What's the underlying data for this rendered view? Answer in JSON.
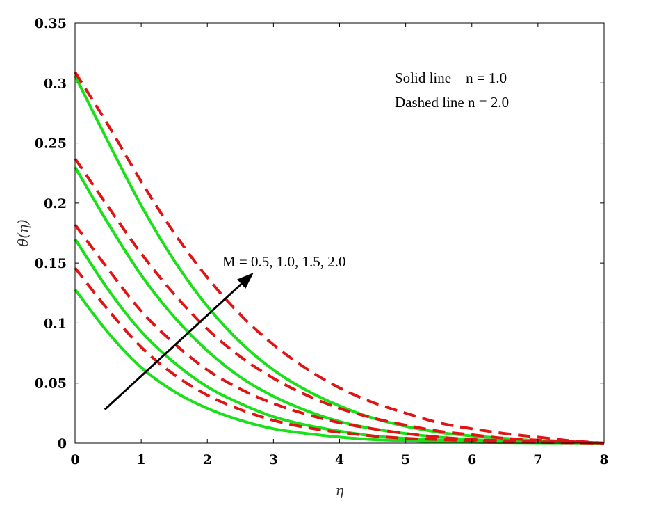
{
  "chart_data": {
    "type": "line",
    "xlabel": "η",
    "ylabel": "θ(η)",
    "xlim": [
      0,
      8
    ],
    "ylim": [
      0,
      0.35
    ],
    "x_ticks": [
      "0",
      "1",
      "2",
      "3",
      "4",
      "5",
      "6",
      "7",
      "8"
    ],
    "y_ticks": [
      "0",
      "0.05",
      "0.1",
      "0.15",
      "0.2",
      "0.25",
      "0.3",
      "0.35"
    ],
    "grid": false,
    "legend_text": [
      "Solid line    n = 1.0",
      "Dashed line n = 2.0"
    ],
    "arrow_label": "M = 0.5, 1.0, 1.5, 2.0",
    "colors": {
      "solid": "#19e019",
      "dashed": "#e01414",
      "arrow": "#000000"
    },
    "series": [
      {
        "style": "solid",
        "values": {
          "x": [
            0,
            0.5,
            1,
            1.5,
            2,
            2.5,
            3,
            3.5,
            4,
            4.5,
            5,
            5.5,
            6,
            6.5,
            7,
            7.5,
            8
          ],
          "y": [
            0.128,
            0.092,
            0.063,
            0.043,
            0.029,
            0.019,
            0.012,
            0.008,
            0.005,
            0.003,
            0.002,
            0.001,
            0.0008,
            0.0005,
            0.0003,
            0.0002,
            0.0
          ]
        }
      },
      {
        "style": "solid",
        "values": {
          "x": [
            0,
            0.5,
            1,
            1.5,
            2,
            2.5,
            3,
            3.5,
            4,
            4.5,
            5,
            5.5,
            6,
            6.5,
            7,
            7.5,
            8
          ],
          "y": [
            0.17,
            0.128,
            0.093,
            0.067,
            0.047,
            0.033,
            0.022,
            0.015,
            0.01,
            0.006,
            0.004,
            0.0025,
            0.0015,
            0.0009,
            0.0005,
            0.0003,
            0.0
          ]
        }
      },
      {
        "style": "solid",
        "values": {
          "x": [
            0,
            0.5,
            1,
            1.5,
            2,
            2.5,
            3,
            3.5,
            4,
            4.5,
            5,
            5.5,
            6,
            6.5,
            7,
            7.5,
            8
          ],
          "y": [
            0.23,
            0.183,
            0.14,
            0.105,
            0.077,
            0.055,
            0.039,
            0.027,
            0.018,
            0.012,
            0.008,
            0.005,
            0.003,
            0.002,
            0.001,
            0.0005,
            0.0
          ]
        }
      },
      {
        "style": "solid",
        "values": {
          "x": [
            0,
            0.5,
            1,
            1.5,
            2,
            2.5,
            3,
            3.5,
            4,
            4.5,
            5,
            5.5,
            6,
            6.5,
            7,
            7.5,
            8
          ],
          "y": [
            0.306,
            0.251,
            0.198,
            0.152,
            0.114,
            0.084,
            0.061,
            0.044,
            0.031,
            0.021,
            0.014,
            0.009,
            0.006,
            0.004,
            0.002,
            0.001,
            0.0
          ]
        }
      },
      {
        "style": "dashed",
        "values": {
          "x": [
            0,
            0.5,
            1,
            1.5,
            2,
            2.5,
            3,
            3.5,
            4,
            4.5,
            5,
            5.5,
            6,
            6.5,
            7,
            7.5,
            8
          ],
          "y": [
            0.146,
            0.111,
            0.08,
            0.057,
            0.04,
            0.028,
            0.019,
            0.013,
            0.009,
            0.006,
            0.004,
            0.003,
            0.002,
            0.001,
            0.0007,
            0.0003,
            0.0
          ]
        }
      },
      {
        "style": "dashed",
        "values": {
          "x": [
            0,
            0.5,
            1,
            1.5,
            2,
            2.5,
            3,
            3.5,
            4,
            4.5,
            5,
            5.5,
            6,
            6.5,
            7,
            7.5,
            8
          ],
          "y": [
            0.182,
            0.145,
            0.11,
            0.083,
            0.061,
            0.045,
            0.033,
            0.024,
            0.017,
            0.012,
            0.008,
            0.005,
            0.003,
            0.002,
            0.0012,
            0.0006,
            0.0
          ]
        }
      },
      {
        "style": "dashed",
        "values": {
          "x": [
            0,
            0.5,
            1,
            1.5,
            2,
            2.5,
            3,
            3.5,
            4,
            4.5,
            5,
            5.5,
            6,
            6.5,
            7,
            7.5,
            8
          ],
          "y": [
            0.237,
            0.197,
            0.158,
            0.124,
            0.095,
            0.072,
            0.054,
            0.04,
            0.029,
            0.021,
            0.015,
            0.01,
            0.007,
            0.004,
            0.0025,
            0.0012,
            0.0
          ]
        }
      },
      {
        "style": "dashed",
        "values": {
          "x": [
            0,
            0.5,
            1,
            1.5,
            2,
            2.5,
            3,
            3.5,
            4,
            4.5,
            5,
            5.5,
            6,
            6.5,
            7,
            7.5,
            8
          ],
          "y": [
            0.309,
            0.265,
            0.218,
            0.175,
            0.138,
            0.107,
            0.082,
            0.062,
            0.046,
            0.034,
            0.025,
            0.017,
            0.012,
            0.008,
            0.005,
            0.002,
            0.0
          ]
        }
      }
    ],
    "arrow": {
      "from": [
        0.45,
        0.028
      ],
      "to": [
        2.7,
        0.142
      ]
    }
  }
}
